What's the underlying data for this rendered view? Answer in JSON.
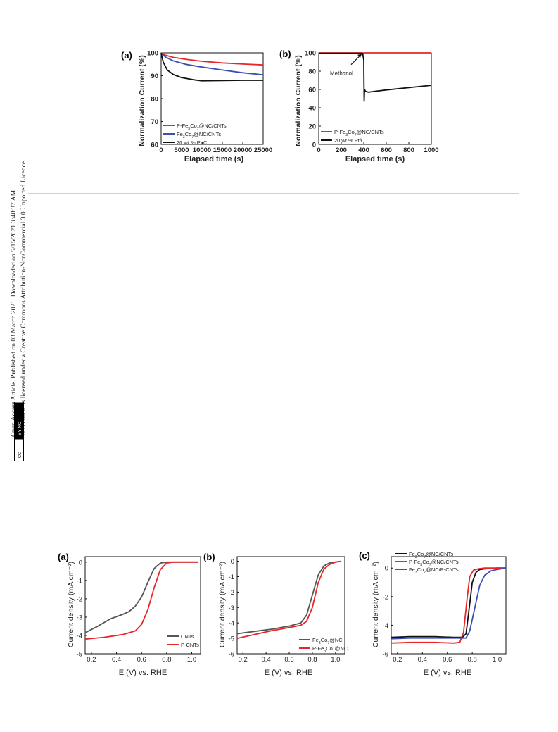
{
  "sidebar": {
    "line1": "Open Access Article. Published on 03 March 2021. Downloaded on 5/15/2021 3:48:37 AM.",
    "line2": "This article is licensed under a Creative Commons Attribution-NonCommercial 3.0 Unported Licence.",
    "badge_cc": "cc",
    "badge_text": "BY-NC"
  },
  "figure_top": {
    "a": {
      "panel": "(a)",
      "ylabel": "Normalization Current (%)",
      "xlabel": "Elapsed time (s)",
      "legend": [
        "P-Fe3Co7@NC/CNTs",
        "Fe3Co7@NC/CNTs",
        "20 wt.% Pt/C"
      ]
    },
    "b": {
      "panel": "(b)",
      "ylabel": "Normalization Current (%)",
      "xlabel": "Elapsed time (s)",
      "annotation": "Methanol",
      "legend": [
        "P-Fe3Co7@NC/CNTs",
        "20 wt.% Pt/C"
      ]
    }
  },
  "figure_bottom": {
    "a": {
      "panel": "(a)",
      "ylabel": "Current density (mA cm⁻²)",
      "xlabel": "E (V) vs. RHE",
      "legend": [
        "CNTs",
        "P-CNTs"
      ]
    },
    "b": {
      "panel": "(b)",
      "ylabel": "Current density (mA cm⁻²)",
      "xlabel": "E (V) vs. RHE",
      "legend": [
        "Fe3Co7@NC",
        "P-Fe3Co7@NC"
      ]
    },
    "c": {
      "panel": "(c)",
      "ylabel": "Current density (mA cm⁻²)",
      "xlabel": "E (V) vs. RHE",
      "legend": [
        "Fe3Co7@NC/CNTs",
        "P-Fe3Co7@NC/CNTs",
        "Fe3Co7@NC/P-CNTs"
      ]
    }
  },
  "chart_data": [
    {
      "type": "line",
      "panel": "(a)",
      "xlabel": "Elapsed time (s)",
      "ylabel": "Normalization Current (%)",
      "xlim": [
        0,
        25000
      ],
      "ylim": [
        60,
        100
      ],
      "xticks": [
        0,
        5000,
        10000,
        15000,
        20000,
        25000
      ],
      "yticks": [
        60,
        70,
        80,
        90,
        100
      ],
      "legend_position": "bottom-left",
      "series": [
        {
          "name": "P-Fe3Co7@NC/CNTs",
          "color": "#e8262a",
          "x": [
            0,
            1000,
            3000,
            6000,
            10000,
            15000,
            20000,
            25000
          ],
          "y": [
            100,
            99,
            98,
            97.2,
            96.3,
            95.6,
            95.1,
            94.7
          ]
        },
        {
          "name": "Fe3Co7@NC/CNTs",
          "color": "#3a4fb0",
          "x": [
            0,
            1000,
            3000,
            6000,
            10000,
            15000,
            20000,
            25000
          ],
          "y": [
            100,
            98.2,
            96.5,
            95,
            93.8,
            92.5,
            91.3,
            90.4
          ]
        },
        {
          "name": "20 wt.% Pt/C",
          "color": "#111111",
          "x": [
            0,
            500,
            1500,
            3000,
            5000,
            8000,
            10000,
            15000,
            20000,
            25000
          ],
          "y": [
            100,
            96,
            92.5,
            90.5,
            89.2,
            88.2,
            87.8,
            87.9,
            88,
            88
          ]
        }
      ]
    },
    {
      "type": "line",
      "panel": "(b)",
      "xlabel": "Elapsed time (s)",
      "ylabel": "Normalization Current (%)",
      "xlim": [
        0,
        1000
      ],
      "ylim": [
        0,
        100
      ],
      "xticks": [
        0,
        200,
        400,
        600,
        800,
        1000
      ],
      "yticks": [
        0,
        20,
        40,
        60,
        80,
        100
      ],
      "annotation": {
        "text": "Methanol",
        "x": 400
      },
      "legend_position": "bottom-left",
      "series": [
        {
          "name": "P-Fe3Co7@NC/CNTs",
          "color": "#e8262a",
          "x": [
            0,
            390,
            400,
            410,
            430,
            460,
            500,
            600,
            800,
            1000
          ],
          "y": [
            100,
            100,
            99,
            104,
            102.5,
            101.5,
            101,
            100.8,
            100.6,
            100.6
          ]
        },
        {
          "name": "20 wt.% Pt/C",
          "color": "#111111",
          "x": [
            0,
            390,
            400,
            403,
            407,
            415,
            440,
            500,
            600,
            800,
            1000
          ],
          "y": [
            99.5,
            99.5,
            92,
            47,
            60,
            58,
            57,
            58,
            59.5,
            62,
            64.5
          ]
        }
      ]
    },
    {
      "type": "line",
      "panel": "(a)",
      "xlabel": "E (V) vs. RHE",
      "ylabel": "Current density (mA cm⁻²)",
      "xlim": [
        0.15,
        1.07
      ],
      "ylim": [
        -5,
        0.3
      ],
      "xticks": [
        0.2,
        0.4,
        0.6,
        0.8,
        1.0
      ],
      "yticks": [
        0,
        -1,
        -2,
        -3,
        -4,
        -5
      ],
      "legend_position": "bottom-right",
      "series": [
        {
          "name": "CNTs",
          "color": "#555555",
          "x": [
            0.15,
            0.25,
            0.35,
            0.45,
            0.5,
            0.55,
            0.6,
            0.65,
            0.7,
            0.75,
            0.8,
            0.9,
            1.05
          ],
          "y": [
            -3.85,
            -3.5,
            -3.1,
            -2.85,
            -2.7,
            -2.4,
            -1.9,
            -1.1,
            -0.35,
            -0.05,
            0,
            0,
            0
          ]
        },
        {
          "name": "P-CNTs",
          "color": "#e8262a",
          "x": [
            0.15,
            0.3,
            0.45,
            0.55,
            0.6,
            0.65,
            0.7,
            0.75,
            0.8,
            0.85,
            0.9,
            1.05
          ],
          "y": [
            -4.2,
            -4.1,
            -3.95,
            -3.75,
            -3.4,
            -2.6,
            -1.4,
            -0.4,
            -0.05,
            0,
            0,
            0
          ]
        }
      ]
    },
    {
      "type": "line",
      "panel": "(b)",
      "xlabel": "E (V) vs. RHE",
      "ylabel": "Current density (mA cm⁻²)",
      "xlim": [
        0.15,
        1.08
      ],
      "ylim": [
        -6,
        0.3
      ],
      "xticks": [
        0.2,
        0.4,
        0.6,
        0.8,
        1.0
      ],
      "yticks": [
        0,
        -1,
        -2,
        -3,
        -4,
        -5,
        -6
      ],
      "legend_position": "bottom-right",
      "series": [
        {
          "name": "Fe3Co7@NC",
          "color": "#555555",
          "x": [
            0.15,
            0.3,
            0.45,
            0.6,
            0.7,
            0.75,
            0.8,
            0.85,
            0.9,
            0.95,
            1.0,
            1.05
          ],
          "y": [
            -4.7,
            -4.55,
            -4.4,
            -4.2,
            -4.0,
            -3.5,
            -2.2,
            -0.9,
            -0.3,
            -0.1,
            -0.05,
            0
          ]
        },
        {
          "name": "P-Fe3Co7@NC",
          "color": "#e8262a",
          "x": [
            0.15,
            0.3,
            0.45,
            0.6,
            0.7,
            0.75,
            0.8,
            0.85,
            0.9,
            0.95,
            1.0,
            1.05
          ],
          "y": [
            -5.0,
            -4.75,
            -4.5,
            -4.3,
            -4.15,
            -3.9,
            -3.0,
            -1.4,
            -0.5,
            -0.2,
            -0.05,
            0
          ]
        }
      ]
    },
    {
      "type": "line",
      "panel": "(c)",
      "xlabel": "E (V) vs. RHE",
      "ylabel": "Current density (mA cm⁻²)",
      "xlim": [
        0.15,
        1.07
      ],
      "ylim": [
        -6,
        0.8
      ],
      "xticks": [
        0.2,
        0.4,
        0.6,
        0.8,
        1.0
      ],
      "yticks": [
        0,
        -2,
        -4,
        -6
      ],
      "legend_position": "top-left",
      "series": [
        {
          "name": "Fe3Co7@NC/CNTs",
          "color": "#111111",
          "x": [
            0.15,
            0.3,
            0.5,
            0.65,
            0.72,
            0.75,
            0.78,
            0.8,
            0.83,
            0.86,
            0.9,
            1.0,
            1.07
          ],
          "y": [
            -4.85,
            -4.8,
            -4.8,
            -4.85,
            -4.85,
            -4.6,
            -2.5,
            -1.0,
            -0.3,
            -0.1,
            -0.05,
            0,
            0
          ]
        },
        {
          "name": "P-Fe3Co7@NC/CNTs",
          "color": "#e8262a",
          "x": [
            0.15,
            0.3,
            0.5,
            0.65,
            0.7,
            0.73,
            0.76,
            0.78,
            0.81,
            0.85,
            0.9,
            1.0,
            1.07
          ],
          "y": [
            -5.25,
            -5.2,
            -5.2,
            -5.25,
            -5.2,
            -4.5,
            -2.0,
            -0.6,
            -0.15,
            -0.05,
            0,
            0,
            0
          ]
        },
        {
          "name": "Fe3Co7@NC/P-CNTs",
          "color": "#3a4fb0",
          "x": [
            0.15,
            0.3,
            0.5,
            0.65,
            0.75,
            0.78,
            0.82,
            0.86,
            0.9,
            0.95,
            1.0,
            1.07
          ],
          "y": [
            -4.95,
            -4.9,
            -4.9,
            -4.9,
            -4.9,
            -4.4,
            -2.8,
            -1.2,
            -0.5,
            -0.2,
            -0.1,
            0
          ]
        }
      ]
    }
  ]
}
